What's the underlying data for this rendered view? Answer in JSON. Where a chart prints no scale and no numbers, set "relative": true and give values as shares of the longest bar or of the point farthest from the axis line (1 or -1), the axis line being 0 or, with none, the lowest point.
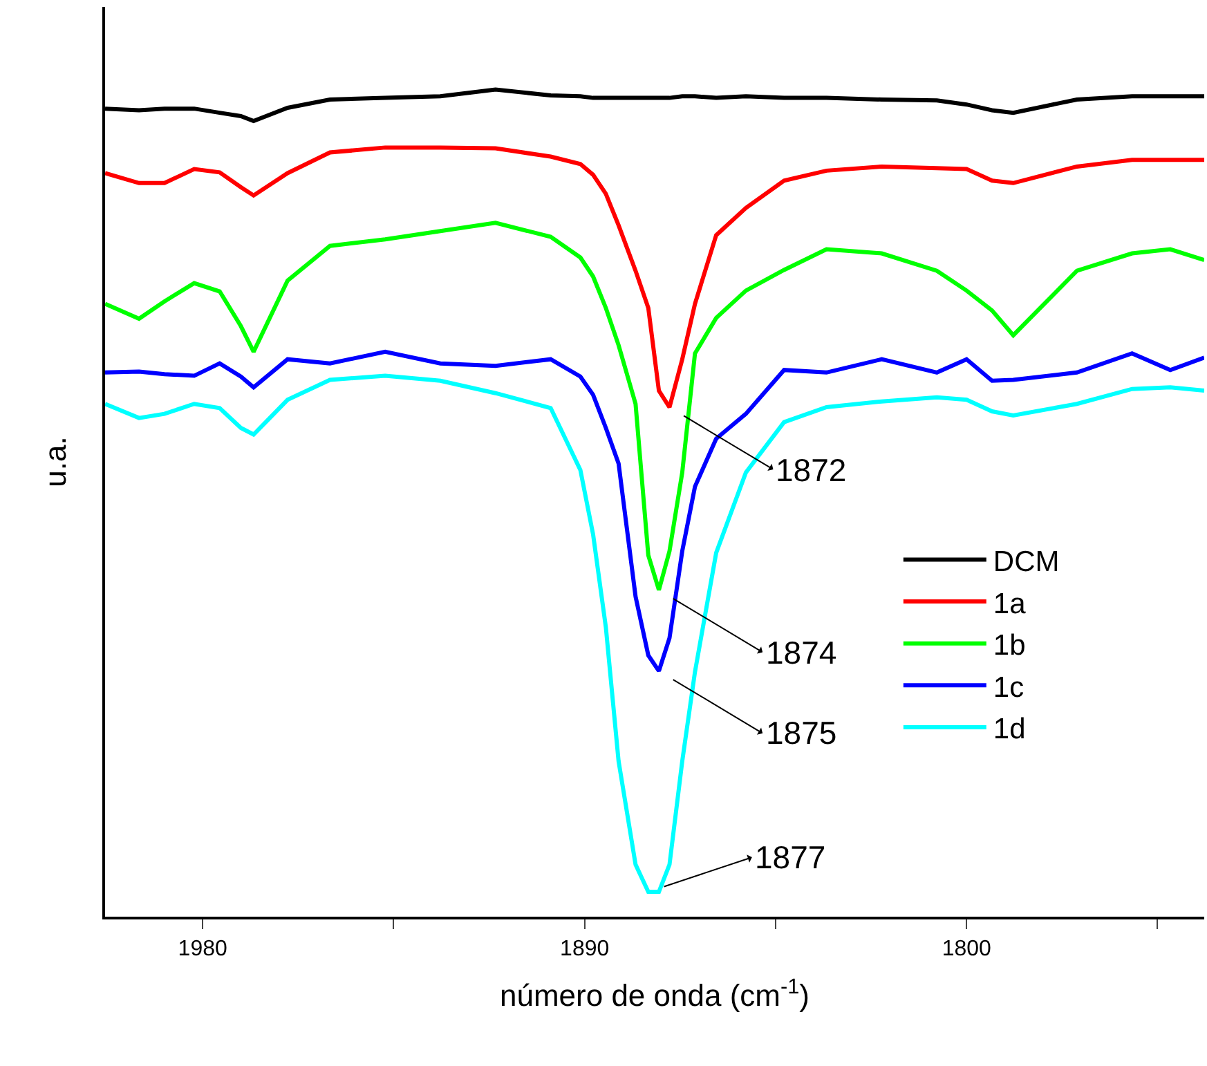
{
  "chart_data": {
    "type": "line",
    "relative": true,
    "xlabel": "número de onda (cm$^{-1}$)",
    "ylabel": "u.a.",
    "x": [
      2003,
      1995,
      1989,
      1982,
      1976,
      1971,
      1968,
      1960,
      1950,
      1937,
      1924,
      1911,
      1898,
      1891,
      1888,
      1885,
      1882,
      1878,
      1875,
      1872.5,
      1870,
      1867,
      1864,
      1859,
      1852,
      1843,
      1833,
      1820,
      1807,
      1800,
      1794,
      1789,
      1774,
      1761,
      1752,
      1744
    ],
    "xlim": [
      2003,
      1744
    ],
    "xticks": [
      1980,
      {
        "value": 1935,
        "label": null
      },
      1890,
      {
        "value": 1845,
        "label": null
      },
      1800,
      {
        "value": 1755,
        "label": null
      }
    ],
    "series": [
      {
        "name": "DCM",
        "color": "#000000",
        "values": [
          0.977,
          0.975,
          0.977,
          0.977,
          0.972,
          0.968,
          0.962,
          0.978,
          0.988,
          0.99,
          0.992,
          1.0,
          0.993,
          0.992,
          0.99,
          0.99,
          0.99,
          0.99,
          0.99,
          0.99,
          0.99,
          0.992,
          0.992,
          0.99,
          0.992,
          0.99,
          0.99,
          0.988,
          0.987,
          0.982,
          0.975,
          0.972,
          0.988,
          0.992,
          0.992,
          0.992
        ]
      },
      {
        "name": "1a",
        "color": "#ff0000",
        "values": [
          0.899,
          0.887,
          0.887,
          0.904,
          0.9,
          0.882,
          0.872,
          0.899,
          0.924,
          0.93,
          0.93,
          0.929,
          0.919,
          0.91,
          0.897,
          0.874,
          0.836,
          0.781,
          0.736,
          0.636,
          0.616,
          0.674,
          0.741,
          0.824,
          0.857,
          0.89,
          0.902,
          0.907,
          0.905,
          0.904,
          0.89,
          0.887,
          0.907,
          0.915,
          0.915,
          0.915
        ]
      },
      {
        "name": "1b",
        "color": "#00ff00",
        "values": [
          0.741,
          0.723,
          0.744,
          0.766,
          0.756,
          0.714,
          0.683,
          0.769,
          0.811,
          0.819,
          0.829,
          0.839,
          0.822,
          0.797,
          0.774,
          0.736,
          0.691,
          0.62,
          0.437,
          0.395,
          0.442,
          0.537,
          0.681,
          0.724,
          0.757,
          0.782,
          0.807,
          0.802,
          0.781,
          0.757,
          0.733,
          0.703,
          0.781,
          0.802,
          0.807,
          0.794
        ]
      },
      {
        "name": "1c",
        "color": "#0000ff",
        "values": [
          0.658,
          0.659,
          0.656,
          0.654,
          0.669,
          0.653,
          0.64,
          0.674,
          0.669,
          0.683,
          0.669,
          0.666,
          0.674,
          0.653,
          0.631,
          0.591,
          0.548,
          0.387,
          0.316,
          0.297,
          0.337,
          0.442,
          0.52,
          0.578,
          0.608,
          0.661,
          0.658,
          0.674,
          0.658,
          0.674,
          0.648,
          0.649,
          0.658,
          0.681,
          0.661,
          0.676
        ]
      },
      {
        "name": "1d",
        "color": "#00ffff",
        "values": [
          0.62,
          0.603,
          0.608,
          0.62,
          0.615,
          0.591,
          0.583,
          0.625,
          0.649,
          0.654,
          0.648,
          0.633,
          0.615,
          0.54,
          0.462,
          0.35,
          0.188,
          0.063,
          0.03,
          0.03,
          0.063,
          0.188,
          0.296,
          0.44,
          0.537,
          0.598,
          0.616,
          0.623,
          0.628,
          0.625,
          0.611,
          0.606,
          0.62,
          0.638,
          0.64,
          0.636
        ]
      }
    ],
    "annotations": [
      "1872",
      "1874",
      "1875",
      "1877"
    ],
    "legend": "right",
    "marker": "none",
    "line_style": "solid"
  }
}
